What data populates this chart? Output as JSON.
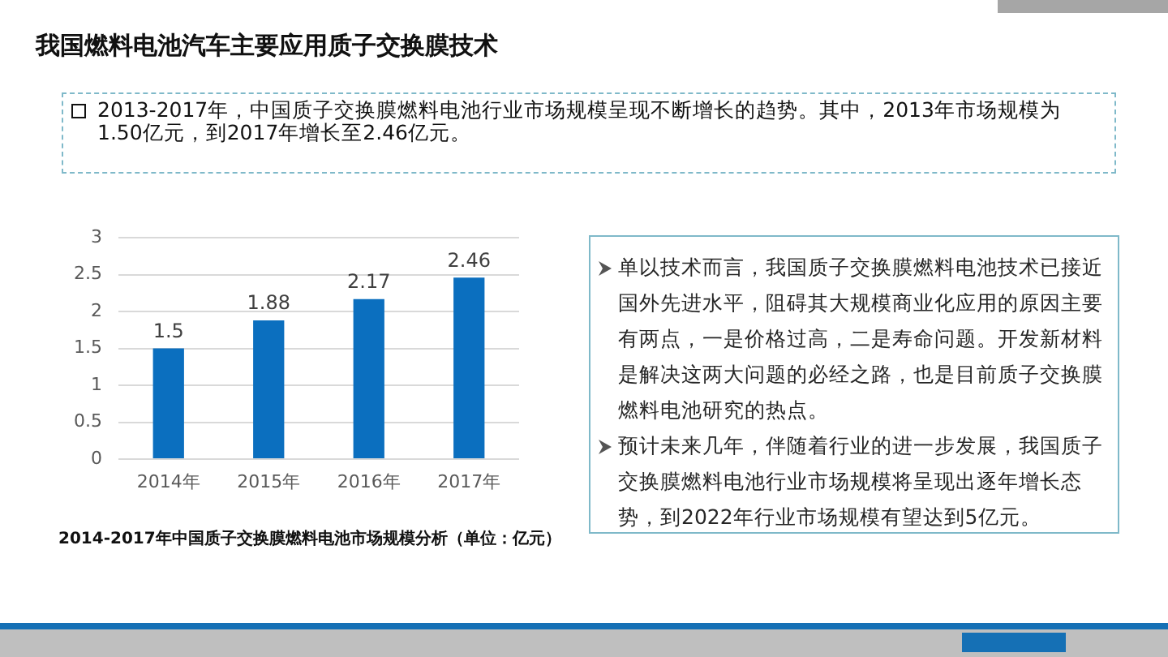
{
  "chart_data": {
    "type": "bar",
    "title": "我国燃料电池汽车主要应用质子交换膜技术",
    "subtitle": "2014-2017年中国质子交换膜燃料电池市场规模分析（单位：亿元）",
    "categories": [
      "2014年",
      "2015年",
      "2016年",
      "2017年"
    ],
    "values": [
      1.5,
      1.88,
      2.17,
      2.46
    ],
    "color": "#0b6fbf",
    "ylim": [
      0,
      3
    ],
    "yticks": [
      0,
      0.5,
      1,
      1.5,
      2,
      2.5,
      3
    ],
    "grid": "y",
    "data_labels": true,
    "annotations": [
      "2013-2017年，中国质子交换膜燃料电池行业市场规模呈现不断增长的趋势。其中，2013年市场规模为1.50亿元，到2017年增长至2.46亿元。",
      "单以技术而言，我国质子交换膜燃料电池技术已接近国外先进水平，阻碍其大规模商业化应用的原因主要有两点，一是价格过高，二是寿命问题。开发新材料是解决这两大问题的必经之路，也是目前质子交换膜燃料电池研究的热点。",
      "预计未来几年，伴随着行业的进一步发展，我国质子交换膜燃料电池行业市场规模将呈现出逐年增长态势，到2022年行业市场规模有望达到5亿元。"
    ]
  }
}
